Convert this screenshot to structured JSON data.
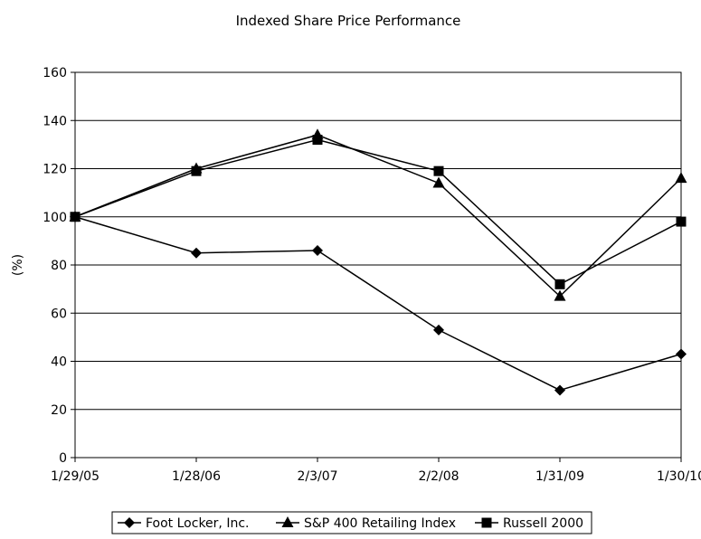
{
  "chart_data": {
    "type": "line",
    "title": "Indexed Share Price Performance",
    "xlabel": "",
    "ylabel": "(%)",
    "categories": [
      "1/29/05",
      "1/28/06",
      "2/3/07",
      "2/2/08",
      "1/31/09",
      "1/30/10"
    ],
    "ylim": [
      0,
      160
    ],
    "yticks": [
      0,
      20,
      40,
      60,
      80,
      100,
      120,
      140,
      160
    ],
    "grid": "horizontal",
    "legend_position": "bottom",
    "series": [
      {
        "name": "Foot Locker, Inc.",
        "marker": "diamond",
        "color": "#000000",
        "values": [
          100,
          85,
          86,
          53,
          28,
          43
        ]
      },
      {
        "name": "S&P 400 Retailing Index",
        "marker": "triangle",
        "color": "#000000",
        "values": [
          100,
          120,
          134,
          114,
          67,
          116
        ]
      },
      {
        "name": "Russell 2000",
        "marker": "square",
        "color": "#000000",
        "values": [
          100,
          119,
          132,
          119,
          72,
          98
        ]
      }
    ]
  }
}
